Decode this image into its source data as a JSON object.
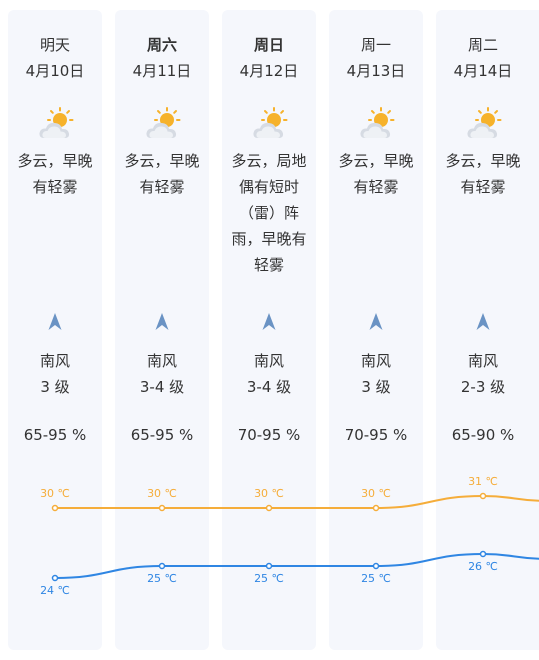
{
  "colors": {
    "card_background": "#f5f7fc",
    "high_line": "#f5ad3a",
    "low_line": "#2f86e3",
    "wind_arrow": "#6a93c4"
  },
  "days": [
    {
      "name": "明天",
      "bold": false,
      "date": "4月10日",
      "icon": "partly-cloudy-icon",
      "desc": "多云，早晚有轻雾",
      "wind_dir": "南风",
      "wind_level": "3 级",
      "humidity": "65-95 %",
      "high": "30 ℃",
      "low": "24 ℃"
    },
    {
      "name": "周六",
      "bold": true,
      "date": "4月11日",
      "icon": "partly-cloudy-icon",
      "desc": "多云，早晚有轻雾",
      "wind_dir": "南风",
      "wind_level": "3-4 级",
      "humidity": "65-95 %",
      "high": "30 ℃",
      "low": "25 ℃"
    },
    {
      "name": "周日",
      "bold": true,
      "date": "4月12日",
      "icon": "partly-cloudy-icon",
      "desc": "多云，局地偶有短时（雷）阵雨，早晚有轻雾",
      "wind_dir": "南风",
      "wind_level": "3-4 级",
      "humidity": "70-95 %",
      "high": "30 ℃",
      "low": "25 ℃"
    },
    {
      "name": "周一",
      "bold": false,
      "date": "4月13日",
      "icon": "partly-cloudy-icon",
      "desc": "多云，早晚有轻雾",
      "wind_dir": "南风",
      "wind_level": "3 级",
      "humidity": "70-95 %",
      "high": "30 ℃",
      "low": "25 ℃"
    },
    {
      "name": "周二",
      "bold": false,
      "date": "4月14日",
      "icon": "partly-cloudy-icon",
      "desc": "多云，早晚有轻雾",
      "wind_dir": "南风",
      "wind_level": "2-3 级",
      "humidity": "65-90 %",
      "high": "31 ℃",
      "low": "26 ℃"
    }
  ],
  "temps": {
    "high_values": [
      30,
      30,
      30,
      30,
      31
    ],
    "low_values": [
      24,
      25,
      25,
      25,
      26
    ]
  }
}
